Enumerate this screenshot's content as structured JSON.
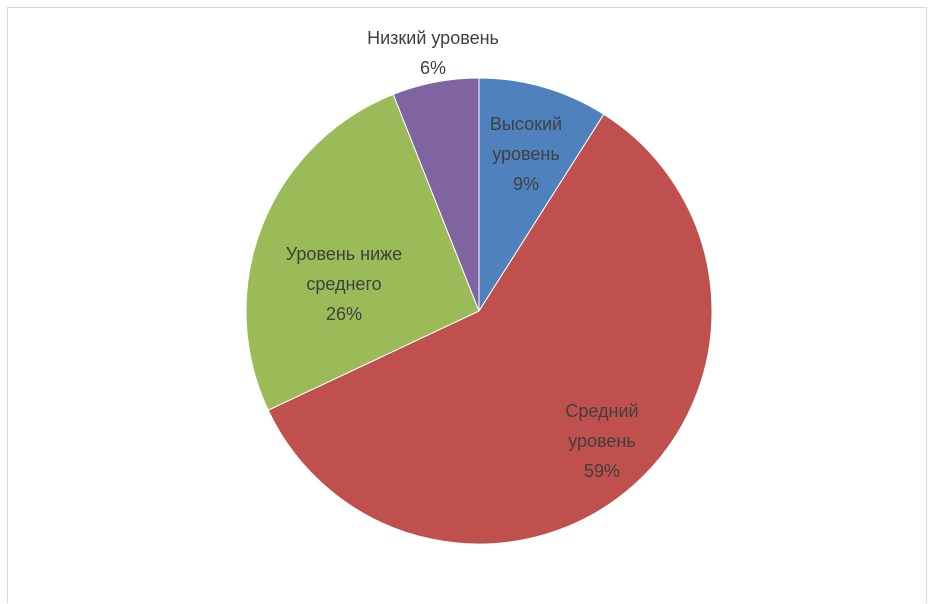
{
  "chart_data": {
    "type": "pie",
    "slices": [
      {
        "name": "Высокий уровень",
        "label_lines": [
          "Высокий",
          "уровень",
          "9%"
        ],
        "value": 9,
        "percent_label": "9%",
        "color": "#4F81BD"
      },
      {
        "name": "Средний уровень",
        "label_lines": [
          "Средний",
          "уровень",
          "59%"
        ],
        "value": 59,
        "percent_label": "59%",
        "color": "#C0504D"
      },
      {
        "name": "Уровень ниже среднего",
        "label_lines": [
          "Уровень ниже",
          "среднего",
          "26%"
        ],
        "value": 26,
        "percent_label": "26%",
        "color": "#9BBB59"
      },
      {
        "name": "Низкий уровень",
        "label_lines": [
          "Низкий уровень",
          "6%"
        ],
        "value": 6,
        "percent_label": "6%",
        "color": "#8064A2"
      }
    ],
    "start_angle_deg": 0,
    "direction": "clockwise",
    "legend": "none",
    "title": ""
  }
}
